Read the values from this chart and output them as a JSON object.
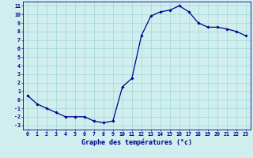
{
  "x": [
    0,
    1,
    2,
    3,
    4,
    5,
    6,
    7,
    8,
    9,
    10,
    11,
    12,
    13,
    14,
    15,
    16,
    17,
    18,
    19,
    20,
    21,
    22,
    23
  ],
  "y": [
    0.5,
    -0.5,
    -1.0,
    -1.5,
    -2.0,
    -2.0,
    -2.0,
    -2.5,
    -2.7,
    -2.5,
    1.5,
    2.5,
    7.5,
    9.8,
    10.3,
    10.5,
    11.0,
    10.3,
    9.0,
    8.5,
    8.5,
    8.3,
    8.0,
    7.5
  ],
  "line_color": "#00008B",
  "marker": "D",
  "marker_size": 1.8,
  "linewidth": 0.9,
  "xlabel": "Graphe des températures (°c)",
  "xlim": [
    -0.5,
    23.5
  ],
  "ylim": [
    -3.5,
    11.5
  ],
  "yticks": [
    -3,
    -2,
    -1,
    0,
    1,
    2,
    3,
    4,
    5,
    6,
    7,
    8,
    9,
    10,
    11
  ],
  "xticks": [
    0,
    1,
    2,
    3,
    4,
    5,
    6,
    7,
    8,
    9,
    10,
    11,
    12,
    13,
    14,
    15,
    16,
    17,
    18,
    19,
    20,
    21,
    22,
    23
  ],
  "grid_color": "#a0d8d8",
  "background_color": "#d0eeee",
  "axis_color": "#00008B",
  "tick_color": "#00008B",
  "xlabel_color": "#00008B",
  "xlabel_fontsize": 6.0,
  "tick_fontsize": 4.8
}
